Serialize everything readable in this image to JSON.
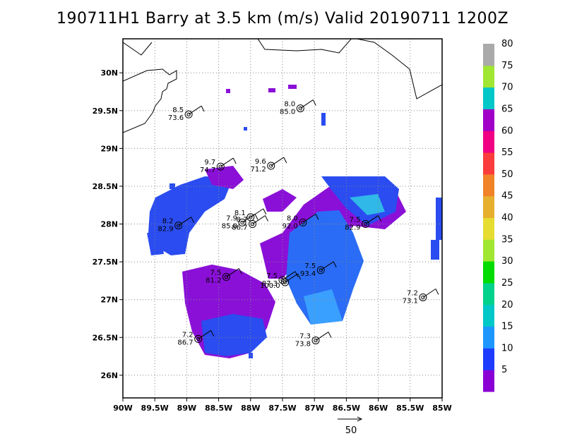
{
  "title": "190711H1 Barry at 3.5 km (m/s) Valid 20190711 1200Z",
  "map": {
    "lon_range": [
      -90,
      -85
    ],
    "lat_range": [
      25.7,
      30.45
    ],
    "lon_ticks": [
      {
        "lon": -90,
        "label": "90W"
      },
      {
        "lon": -89.5,
        "label": "89.5W"
      },
      {
        "lon": -89,
        "label": "89W"
      },
      {
        "lon": -88.5,
        "label": "88.5W"
      },
      {
        "lon": -88,
        "label": "88W"
      },
      {
        "lon": -87.5,
        "label": "87.5W"
      },
      {
        "lon": -87,
        "label": "87W"
      },
      {
        "lon": -86.5,
        "label": "86.5W"
      },
      {
        "lon": -86,
        "label": "86W"
      },
      {
        "lon": -85.5,
        "label": "85.5W"
      },
      {
        "lon": -85,
        "label": "85W"
      }
    ],
    "lat_ticks": [
      {
        "lat": 26,
        "label": "26N"
      },
      {
        "lat": 26.5,
        "label": "26.5N"
      },
      {
        "lat": 27,
        "label": "27N"
      },
      {
        "lat": 27.5,
        "label": "27.5N"
      },
      {
        "lat": 28,
        "label": "28N"
      },
      {
        "lat": 28.5,
        "label": "28.5N"
      },
      {
        "lat": 29,
        "label": "29N"
      },
      {
        "lat": 29.5,
        "label": "29.5N"
      },
      {
        "lat": 30,
        "label": "30N"
      }
    ],
    "grid": "dotted"
  },
  "colorbar": {
    "labels": [
      "5",
      "10",
      "15",
      "20",
      "25",
      "30",
      "35",
      "40",
      "45",
      "50",
      "55",
      "60",
      "65",
      "70",
      "75",
      "80"
    ],
    "colors": [
      "#8a00d4",
      "#1e3cff",
      "#1e96ff",
      "#00c8c8",
      "#00d28c",
      "#00dc00",
      "#a0e632",
      "#e6dc32",
      "#e6af2d",
      "#f08228",
      "#fa3c3c",
      "#f00082",
      "#a000c8",
      "#00c8c8",
      "#a0e632",
      "#aaaaaa"
    ]
  },
  "vector_reference": {
    "label": "50"
  },
  "stations": [
    {
      "lon": -88.97,
      "lat": 29.45,
      "speed": "8.5",
      "pressure": "73.6"
    },
    {
      "lon": -87.22,
      "lat": 29.53,
      "speed": "8.0",
      "pressure": "85.0"
    },
    {
      "lon": -88.47,
      "lat": 28.76,
      "speed": "9.7",
      "pressure": "74.7"
    },
    {
      "lon": -87.68,
      "lat": 28.77,
      "speed": "9.6",
      "pressure": "71.2"
    },
    {
      "lon": -89.13,
      "lat": 27.98,
      "speed": "8.2",
      "pressure": "82.9"
    },
    {
      "lon": -88.0,
      "lat": 28.09,
      "speed": "8.1",
      "pressure": ""
    },
    {
      "lon": -88.13,
      "lat": 28.02,
      "speed": "7.9",
      "pressure": "85.0"
    },
    {
      "lon": -87.97,
      "lat": 28.0,
      "speed": "8.7",
      "pressure": "86.7"
    },
    {
      "lon": -87.18,
      "lat": 28.02,
      "speed": "8.0",
      "pressure": "92.0"
    },
    {
      "lon": -86.2,
      "lat": 28.0,
      "speed": "7.5",
      "pressure": "82.9"
    },
    {
      "lon": -88.38,
      "lat": 27.3,
      "speed": "7.5",
      "pressure": "81.2"
    },
    {
      "lon": -87.5,
      "lat": 27.26,
      "speed": "7.5",
      "pressure": "87.3"
    },
    {
      "lon": -87.46,
      "lat": 27.23,
      "speed": "",
      "pressure": "100.0"
    },
    {
      "lon": -86.9,
      "lat": 27.39,
      "speed": "7.5",
      "pressure": "93.4"
    },
    {
      "lon": -85.3,
      "lat": 27.03,
      "speed": "7.2",
      "pressure": "73.1"
    },
    {
      "lon": -88.82,
      "lat": 26.48,
      "speed": "7.2",
      "pressure": "86.7"
    },
    {
      "lon": -86.98,
      "lat": 26.46,
      "speed": "7.3",
      "pressure": "73.8"
    }
  ]
}
